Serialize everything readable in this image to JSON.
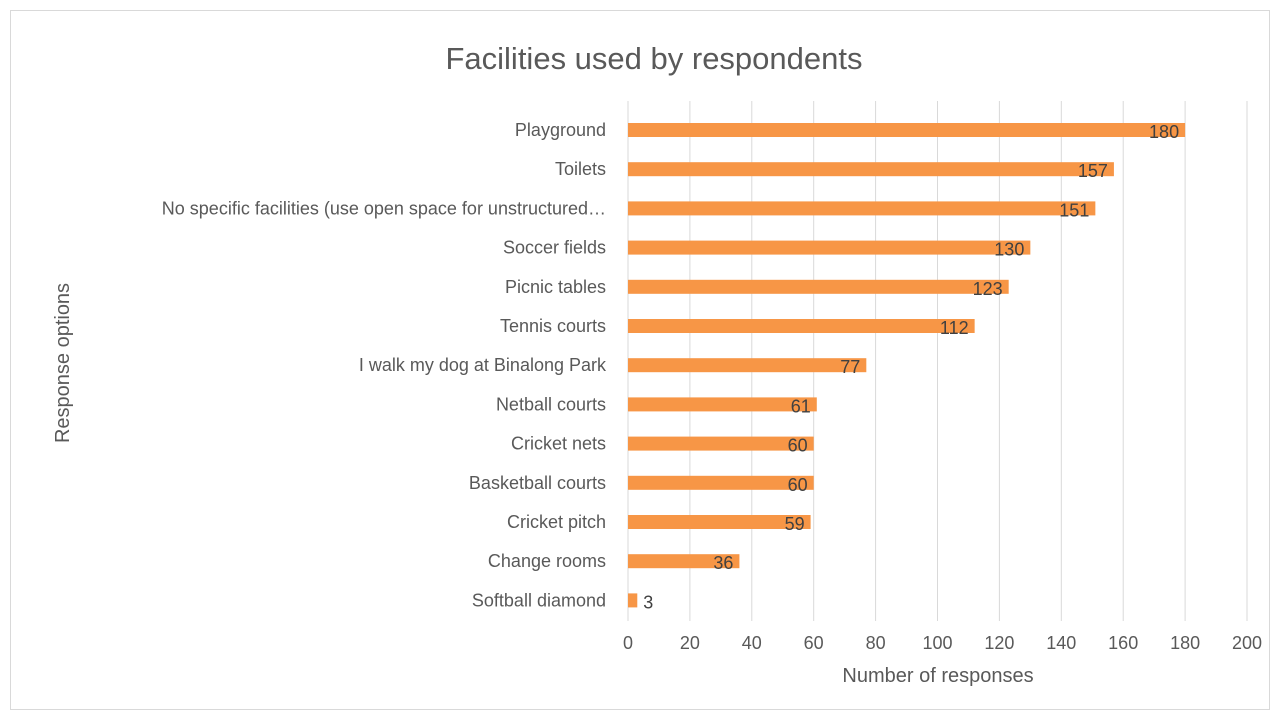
{
  "chart_data": {
    "type": "bar",
    "orientation": "horizontal",
    "title": "Facilities used by respondents",
    "xlabel": "Number of responses",
    "ylabel": "Response options",
    "xlim": [
      0,
      200
    ],
    "xticks": [
      0,
      20,
      40,
      60,
      80,
      100,
      120,
      140,
      160,
      180,
      200
    ],
    "grid": true,
    "bar_color": "#f79646",
    "categories": [
      "Playground",
      "Toilets",
      "No specific facilities (use open space for unstructured…",
      "Soccer fields",
      "Picnic tables",
      "Tennis courts",
      "I walk my dog at Binalong Park",
      "Netball courts",
      "Cricket nets",
      "Basketball courts",
      "Cricket pitch",
      "Change rooms",
      "Softball diamond"
    ],
    "values": [
      180,
      157,
      151,
      130,
      123,
      112,
      77,
      61,
      60,
      60,
      59,
      36,
      3
    ]
  }
}
